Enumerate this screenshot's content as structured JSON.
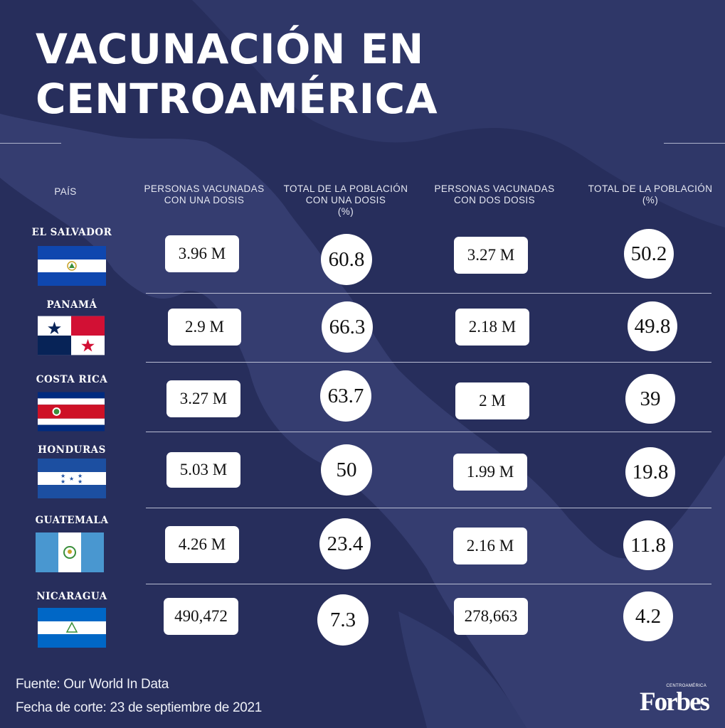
{
  "title": {
    "line1": "VACUNACIÓN EN",
    "line2": "CENTROAMÉRICA"
  },
  "colors": {
    "background": "#272e5c",
    "map_land": "#353d70",
    "card": "#ffffff",
    "text_dark": "#111111"
  },
  "chart_data": {
    "type": "table",
    "columns": [
      "PAÍS",
      "PERSONAS VACUNADAS\nCON UNA DOSIS",
      "TOTAL DE LA POBLACIÓN\nCON UNA DOSIS\n(%)",
      "PERSONAS VACUNADAS\nCON DOS DOSIS",
      "TOTAL DE LA POBLACIÓN\n(%)"
    ],
    "rows": [
      {
        "country": "EL SALVADOR",
        "flag": "el-salvador-flag",
        "one_dose": "3.96 M",
        "pct_one_dose": "60.8",
        "two_doses": "3.27 M",
        "pct_two_doses": "50.2"
      },
      {
        "country": "PANAMÁ",
        "flag": "panama-flag",
        "one_dose": "2.9 M",
        "pct_one_dose": "66.3",
        "two_doses": "2.18 M",
        "pct_two_doses": "49.8"
      },
      {
        "country": "COSTA RICA",
        "flag": "costa-rica-flag",
        "one_dose": "3.27 M",
        "pct_one_dose": "63.7",
        "two_doses": "2 M",
        "pct_two_doses": "39"
      },
      {
        "country": "HONDURAS",
        "flag": "honduras-flag",
        "one_dose": "5.03 M",
        "pct_one_dose": "50",
        "two_doses": "1.99 M",
        "pct_two_doses": "19.8"
      },
      {
        "country": "GUATEMALA",
        "flag": "guatemala-flag",
        "one_dose": "4.26 M",
        "pct_one_dose": "23.4",
        "two_doses": "2.16 M",
        "pct_two_doses": "11.8"
      },
      {
        "country": "NICARAGUA",
        "flag": "nicaragua-flag",
        "one_dose": "490,472",
        "pct_one_dose": "7.3",
        "two_doses": "278,663",
        "pct_two_doses": "4.2"
      }
    ]
  },
  "footer": {
    "source": "Fuente: Our World In Data",
    "cutoff": "Fecha de corte: 23 de septiembre de 2021"
  },
  "logo": {
    "word": "Forbes",
    "edition": "CENTROAMÉRICA"
  }
}
